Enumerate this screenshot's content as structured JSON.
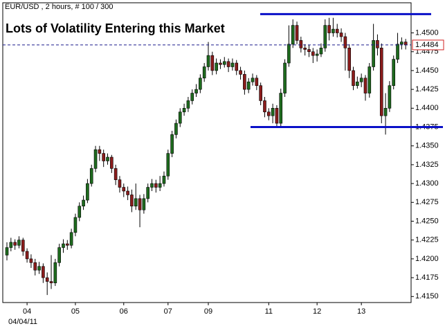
{
  "chart_data": {
    "type": "candlestick",
    "header": "EUR/USD , 2 hours, # 100 / 300",
    "title": "Lots of Volatility Entering this Market",
    "date_label": "04/04/11",
    "up_color": "#1e6b1e",
    "down_color": "#8b1c1c",
    "title_color": "#1010b8",
    "level_line_color": "#0a10c8",
    "level_lines": [
      1.4525,
      1.4375
    ],
    "ylim": [
      1.4142,
      1.454
    ],
    "yticks": [
      {
        "value": 1.415,
        "label": "1.4150"
      },
      {
        "value": 1.4175,
        "label": "1.4175"
      },
      {
        "value": 1.42,
        "label": "1.4200"
      },
      {
        "value": 1.4225,
        "label": "1.4225"
      },
      {
        "value": 1.425,
        "label": "1.4250"
      },
      {
        "value": 1.4275,
        "label": "1.4275"
      },
      {
        "value": 1.43,
        "label": "1.4300"
      },
      {
        "value": 1.4325,
        "label": "1.4325"
      },
      {
        "value": 1.435,
        "label": "1.4350"
      },
      {
        "value": 1.4375,
        "label": "1.4375"
      },
      {
        "value": 1.44,
        "label": "1.4400"
      },
      {
        "value": 1.4425,
        "label": "1.4425"
      },
      {
        "value": 1.445,
        "label": "1.4450"
      },
      {
        "value": 1.4475,
        "label": "1.4475"
      },
      {
        "value": 1.45,
        "label": "1.4500"
      }
    ],
    "categories": [
      null,
      null,
      null,
      null,
      null,
      "04",
      null,
      null,
      null,
      null,
      null,
      null,
      null,
      null,
      null,
      null,
      null,
      "05",
      null,
      null,
      null,
      null,
      null,
      null,
      null,
      null,
      null,
      null,
      null,
      "06",
      null,
      null,
      null,
      null,
      null,
      null,
      null,
      null,
      null,
      null,
      "07",
      null,
      null,
      null,
      null,
      null,
      null,
      null,
      null,
      null,
      "09",
      null,
      null,
      null,
      null,
      null,
      null,
      null,
      null,
      null,
      null,
      null,
      null,
      null,
      null,
      "11",
      null,
      null,
      null,
      null,
      null,
      null,
      null,
      null,
      null,
      null,
      null,
      "12",
      null,
      null,
      null,
      null,
      null,
      null,
      null,
      null,
      null,
      null,
      "13",
      null,
      null,
      null,
      null,
      null,
      null,
      null,
      null,
      null,
      null,
      null
    ],
    "candles": [
      [
        1.4205,
        1.4222,
        1.4198,
        1.4215
      ],
      [
        1.4215,
        1.4228,
        1.421,
        1.4222
      ],
      [
        1.4222,
        1.4226,
        1.4212,
        1.4218
      ],
      [
        1.4218,
        1.423,
        1.4214,
        1.4225
      ],
      [
        1.4225,
        1.4228,
        1.4204,
        1.421
      ],
      [
        1.421,
        1.4214,
        1.4195,
        1.42
      ],
      [
        1.42,
        1.4206,
        1.4188,
        1.4195
      ],
      [
        1.4195,
        1.42,
        1.4178,
        1.4185
      ],
      [
        1.4185,
        1.4196,
        1.418,
        1.419
      ],
      [
        1.419,
        1.4194,
        1.4168,
        1.4175
      ],
      [
        1.4175,
        1.4182,
        1.4152,
        1.417
      ],
      [
        1.417,
        1.4205,
        1.416,
        1.4168
      ],
      [
        1.4168,
        1.42,
        1.4164,
        1.4195
      ],
      [
        1.4195,
        1.422,
        1.419,
        1.4215
      ],
      [
        1.4215,
        1.4226,
        1.4208,
        1.422
      ],
      [
        1.422,
        1.4225,
        1.4212,
        1.4218
      ],
      [
        1.4218,
        1.424,
        1.4214,
        1.4235
      ],
      [
        1.4235,
        1.426,
        1.423,
        1.4255
      ],
      [
        1.4255,
        1.4275,
        1.425,
        1.427
      ],
      [
        1.427,
        1.4284,
        1.4265,
        1.4278
      ],
      [
        1.4278,
        1.4306,
        1.4274,
        1.43
      ],
      [
        1.43,
        1.4325,
        1.4296,
        1.432
      ],
      [
        1.432,
        1.435,
        1.4315,
        1.4345
      ],
      [
        1.4345,
        1.435,
        1.433,
        1.434
      ],
      [
        1.434,
        1.4345,
        1.4322,
        1.433
      ],
      [
        1.433,
        1.434,
        1.4325,
        1.4335
      ],
      [
        1.4335,
        1.4338,
        1.4314,
        1.432
      ],
      [
        1.432,
        1.4325,
        1.4298,
        1.4305
      ],
      [
        1.4305,
        1.431,
        1.4288,
        1.4295
      ],
      [
        1.4295,
        1.43,
        1.4282,
        1.429
      ],
      [
        1.429,
        1.4296,
        1.4278,
        1.4285
      ],
      [
        1.4285,
        1.4292,
        1.4262,
        1.427
      ],
      [
        1.427,
        1.43,
        1.4265,
        1.428
      ],
      [
        1.428,
        1.4285,
        1.4242,
        1.4265
      ],
      [
        1.4265,
        1.4286,
        1.426,
        1.428
      ],
      [
        1.428,
        1.43,
        1.4275,
        1.4295
      ],
      [
        1.4295,
        1.4306,
        1.429,
        1.43
      ],
      [
        1.43,
        1.4305,
        1.4288,
        1.4295
      ],
      [
        1.4295,
        1.431,
        1.429,
        1.43
      ],
      [
        1.43,
        1.4316,
        1.4296,
        1.431
      ],
      [
        1.431,
        1.4345,
        1.4305,
        1.434
      ],
      [
        1.434,
        1.437,
        1.4335,
        1.4365
      ],
      [
        1.4365,
        1.4385,
        1.436,
        1.438
      ],
      [
        1.438,
        1.44,
        1.4375,
        1.4395
      ],
      [
        1.4395,
        1.4406,
        1.439,
        1.44
      ],
      [
        1.44,
        1.4415,
        1.4395,
        1.441
      ],
      [
        1.441,
        1.4425,
        1.4405,
        1.442
      ],
      [
        1.442,
        1.4432,
        1.4415,
        1.4425
      ],
      [
        1.4425,
        1.4445,
        1.442,
        1.444
      ],
      [
        1.444,
        1.446,
        1.4435,
        1.4455
      ],
      [
        1.4455,
        1.4488,
        1.445,
        1.447
      ],
      [
        1.447,
        1.4475,
        1.4444,
        1.445
      ],
      [
        1.445,
        1.4466,
        1.4445,
        1.446
      ],
      [
        1.446,
        1.4465,
        1.4452,
        1.4458
      ],
      [
        1.4458,
        1.4468,
        1.4454,
        1.4462
      ],
      [
        1.4462,
        1.4466,
        1.4448,
        1.4455
      ],
      [
        1.4455,
        1.4466,
        1.445,
        1.446
      ],
      [
        1.446,
        1.4464,
        1.4444,
        1.445
      ],
      [
        1.445,
        1.4455,
        1.4438,
        1.4445
      ],
      [
        1.4445,
        1.445,
        1.4418,
        1.4425
      ],
      [
        1.4425,
        1.444,
        1.442,
        1.4435
      ],
      [
        1.4435,
        1.4446,
        1.443,
        1.444
      ],
      [
        1.444,
        1.4444,
        1.4424,
        1.443
      ],
      [
        1.443,
        1.4434,
        1.4404,
        1.441
      ],
      [
        1.441,
        1.4415,
        1.4388,
        1.4395
      ],
      [
        1.4395,
        1.44,
        1.4384,
        1.439
      ],
      [
        1.439,
        1.4406,
        1.438,
        1.44
      ],
      [
        1.44,
        1.4404,
        1.4375,
        1.438
      ],
      [
        1.438,
        1.4426,
        1.4376,
        1.442
      ],
      [
        1.442,
        1.4465,
        1.4415,
        1.446
      ],
      [
        1.446,
        1.451,
        1.4455,
        1.4485
      ],
      [
        1.4485,
        1.4518,
        1.448,
        1.451
      ],
      [
        1.451,
        1.4515,
        1.4485,
        1.449
      ],
      [
        1.449,
        1.4495,
        1.4474,
        1.448
      ],
      [
        1.448,
        1.4485,
        1.447,
        1.4478
      ],
      [
        1.4478,
        1.4484,
        1.4468,
        1.4475
      ],
      [
        1.4475,
        1.448,
        1.446,
        1.447
      ],
      [
        1.447,
        1.4478,
        1.4462,
        1.4472
      ],
      [
        1.4472,
        1.4486,
        1.4468,
        1.448
      ],
      [
        1.448,
        1.4518,
        1.4475,
        1.451
      ],
      [
        1.451,
        1.452,
        1.449,
        1.45
      ],
      [
        1.45,
        1.452,
        1.4495,
        1.4505
      ],
      [
        1.4505,
        1.4512,
        1.4494,
        1.45
      ],
      [
        1.45,
        1.4506,
        1.4488,
        1.4495
      ],
      [
        1.4495,
        1.45,
        1.445,
        1.448
      ],
      [
        1.448,
        1.4485,
        1.444,
        1.445
      ],
      [
        1.445,
        1.4455,
        1.4424,
        1.443
      ],
      [
        1.443,
        1.4442,
        1.4426,
        1.4435
      ],
      [
        1.4435,
        1.4446,
        1.4428,
        1.444
      ],
      [
        1.444,
        1.4444,
        1.441,
        1.442
      ],
      [
        1.442,
        1.446,
        1.4414,
        1.4455
      ],
      [
        1.4455,
        1.4512,
        1.445,
        1.449
      ],
      [
        1.449,
        1.4498,
        1.447,
        1.448
      ],
      [
        1.448,
        1.4486,
        1.438,
        1.439
      ],
      [
        1.439,
        1.442,
        1.4365,
        1.44
      ],
      [
        1.44,
        1.4436,
        1.4395,
        1.443
      ],
      [
        1.443,
        1.447,
        1.4425,
        1.4465
      ],
      [
        1.4465,
        1.45,
        1.446,
        1.4485
      ],
      [
        1.4485,
        1.4494,
        1.4478,
        1.4488
      ],
      [
        1.4488,
        1.4492,
        1.4478,
        1.4484
      ]
    ]
  }
}
